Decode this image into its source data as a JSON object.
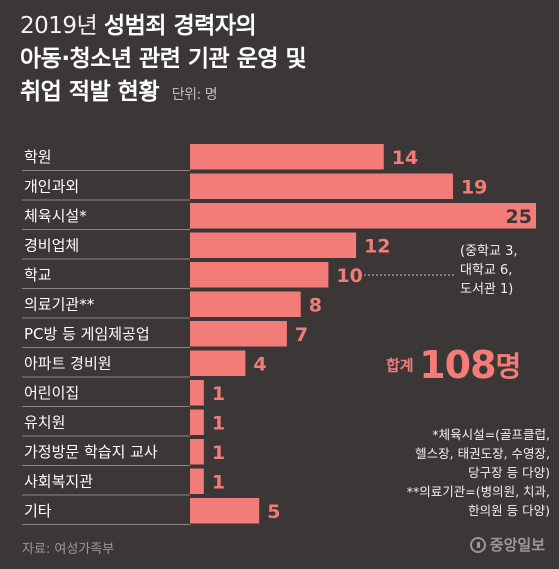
{
  "title": {
    "year_prefix": "2019년",
    "line1_bold": "성범죄 경력자의",
    "line2": "아동·청소년 관련 기관 운영 및",
    "line3": "취업 적발 현황",
    "unit": "단위: 명"
  },
  "chart_data": {
    "type": "bar",
    "orientation": "horizontal",
    "categories": [
      "학원",
      "개인과외",
      "체육시설*",
      "경비업체",
      "학교",
      "의료기관**",
      "PC방 등 게임제공업",
      "아파트 경비원",
      "어린이집",
      "유치원",
      "가정방문 학습지 교사",
      "사회복지관",
      "기타"
    ],
    "values": [
      14,
      19,
      25,
      12,
      10,
      8,
      7,
      4,
      1,
      1,
      1,
      1,
      5
    ],
    "xlim": [
      0,
      25
    ],
    "bar_color": "#f47c78"
  },
  "total": {
    "label": "합계",
    "value": "108",
    "unit": "명"
  },
  "school_note": [
    "(중학교 3,",
    "대학교 6,",
    "도서관 1)"
  ],
  "footnotes": [
    "*체육시설=(골프클럽,",
    "헬스장, 태권도장, 수영장,",
    "당구장 등 다양)",
    "**의료기관=(병의원, 치과,",
    "한의원 등 다양)"
  ],
  "source": "자료: 여성가족부",
  "logo": "중앙일보",
  "colors": {
    "background": "#3b3737",
    "accent": "#f47c78",
    "separator": "#8a8484"
  }
}
